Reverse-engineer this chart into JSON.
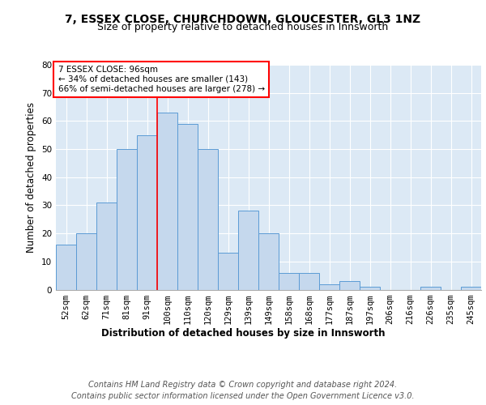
{
  "title1": "7, ESSEX CLOSE, CHURCHDOWN, GLOUCESTER, GL3 1NZ",
  "title2": "Size of property relative to detached houses in Innsworth",
  "xlabel": "Distribution of detached houses by size in Innsworth",
  "ylabel": "Number of detached properties",
  "bar_labels": [
    "52sqm",
    "62sqm",
    "71sqm",
    "81sqm",
    "91sqm",
    "100sqm",
    "110sqm",
    "120sqm",
    "129sqm",
    "139sqm",
    "149sqm",
    "158sqm",
    "168sqm",
    "177sqm",
    "187sqm",
    "197sqm",
    "206sqm",
    "216sqm",
    "226sqm",
    "235sqm",
    "245sqm"
  ],
  "bar_values": [
    16,
    20,
    31,
    50,
    55,
    63,
    59,
    50,
    13,
    28,
    20,
    6,
    6,
    2,
    3,
    1,
    0,
    0,
    1,
    0,
    1
  ],
  "bar_color": "#c5d8ed",
  "bar_edge_color": "#5b9bd5",
  "annotation_text": "7 ESSEX CLOSE: 96sqm\n← 34% of detached houses are smaller (143)\n66% of semi-detached houses are larger (278) →",
  "annotation_box_color": "white",
  "annotation_box_edge_color": "red",
  "vline_x": 4.5,
  "vline_color": "red",
  "ylim": [
    0,
    80
  ],
  "yticks": [
    0,
    10,
    20,
    30,
    40,
    50,
    60,
    70,
    80
  ],
  "bg_color": "#dce9f5",
  "footer": "Contains HM Land Registry data © Crown copyright and database right 2024.\nContains public sector information licensed under the Open Government Licence v3.0.",
  "title_fontsize": 10,
  "subtitle_fontsize": 9,
  "axis_label_fontsize": 8.5,
  "tick_fontsize": 7.5,
  "footer_fontsize": 7
}
